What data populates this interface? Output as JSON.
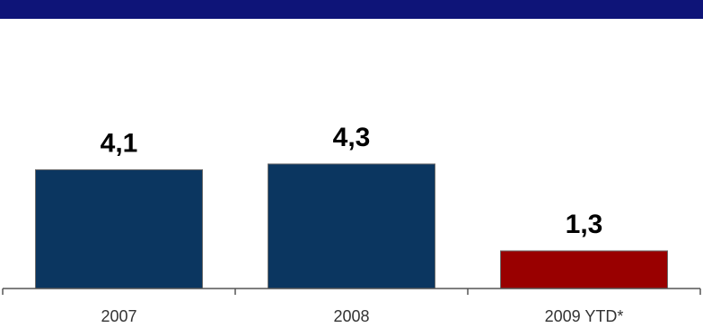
{
  "colors": {
    "header_band": "#0e1478",
    "bar_default": "#0b3660",
    "bar_highlight": "#990000",
    "axis": "#555555"
  },
  "chart_data": {
    "type": "bar",
    "categories": [
      "2007",
      "2008",
      "2009 YTD*"
    ],
    "values": [
      4.1,
      4.3,
      1.3
    ],
    "value_labels": [
      "4,1",
      "4,3",
      "1,3"
    ],
    "bar_colors": [
      "#0b3660",
      "#0b3660",
      "#990000"
    ],
    "title": "",
    "xlabel": "",
    "ylabel": "",
    "ylim": [
      0,
      4.3
    ],
    "grid": false,
    "legend": "none"
  }
}
